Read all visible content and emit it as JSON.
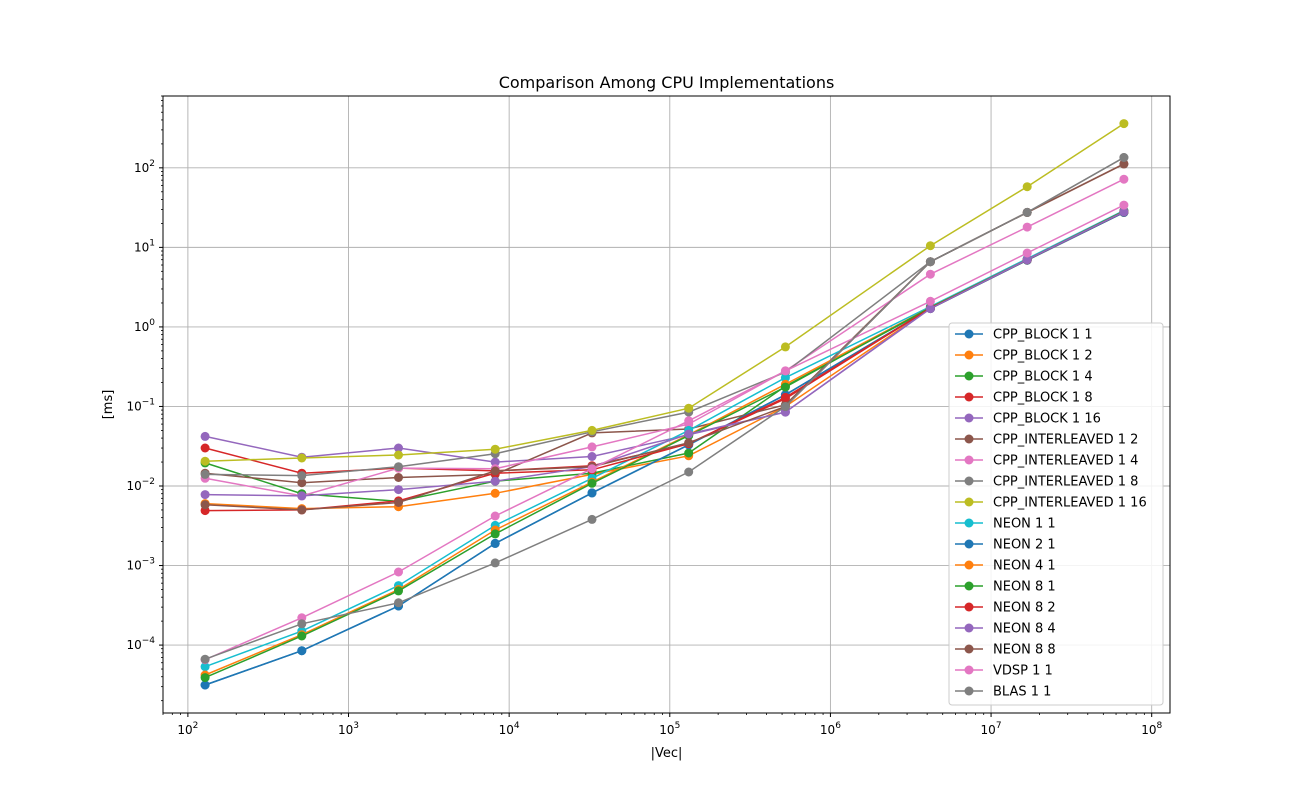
{
  "chart_data": {
    "type": "line",
    "title": "Comparison Among CPU Implementations",
    "xlabel": "|Vec|",
    "ylabel": "[ms]",
    "xscale": "log",
    "yscale": "log",
    "xlim": [
      70,
      130000000
    ],
    "ylim": [
      1.4e-05,
      800
    ],
    "grid": true,
    "legend_position": "lower-right",
    "x_ticks": [
      {
        "value": 100,
        "base": "10",
        "exp": "2"
      },
      {
        "value": 1000,
        "base": "10",
        "exp": "3"
      },
      {
        "value": 10000,
        "base": "10",
        "exp": "4"
      },
      {
        "value": 100000,
        "base": "10",
        "exp": "5"
      },
      {
        "value": 1000000,
        "base": "10",
        "exp": "6"
      },
      {
        "value": 10000000,
        "base": "10",
        "exp": "7"
      },
      {
        "value": 100000000,
        "base": "10",
        "exp": "8"
      }
    ],
    "y_ticks": [
      {
        "value": 0.0001,
        "base": "10",
        "exp": "−4"
      },
      {
        "value": 0.001,
        "base": "10",
        "exp": "−3"
      },
      {
        "value": 0.01,
        "base": "10",
        "exp": "−2"
      },
      {
        "value": 0.1,
        "base": "10",
        "exp": "−1"
      },
      {
        "value": 1,
        "base": "10",
        "exp": "0"
      },
      {
        "value": 10,
        "base": "10",
        "exp": "1"
      },
      {
        "value": 100,
        "base": "10",
        "exp": "2"
      }
    ],
    "x": [
      128,
      512,
      2048,
      8192,
      32768,
      131072,
      524288,
      4194304,
      16777216,
      67108864
    ],
    "series": [
      {
        "name": "CPP_BLOCK 1 1",
        "color": "#1f77b4",
        "values": [
          3.15e-05,
          8.5e-05,
          0.00031,
          0.0019,
          0.0082,
          0.033,
          0.14,
          1.7,
          6.9,
          27.5
        ]
      },
      {
        "name": "CPP_BLOCK 1 2",
        "color": "#ff7f0e",
        "values": [
          0.006,
          0.0052,
          0.0055,
          0.0081,
          0.014,
          0.024,
          0.1,
          1.7,
          6.9,
          27.5
        ]
      },
      {
        "name": "CPP_BLOCK 1 4",
        "color": "#2ca02c",
        "values": [
          0.0195,
          0.008,
          0.0064,
          0.0115,
          0.0145,
          0.026,
          0.18,
          1.72,
          7.0,
          27.8
        ]
      },
      {
        "name": "CPP_BLOCK 1 8",
        "color": "#d62728",
        "values": [
          0.03,
          0.0145,
          0.0168,
          0.0155,
          0.018,
          0.034,
          0.125,
          1.72,
          7.0,
          28.0
        ]
      },
      {
        "name": "CPP_BLOCK 1 16",
        "color": "#9467bd",
        "values": [
          0.042,
          0.023,
          0.03,
          0.02,
          0.0235,
          0.044,
          0.085,
          1.72,
          7.0,
          28.0
        ]
      },
      {
        "name": "CPP_INTERLEAVED 1 2",
        "color": "#8c564b",
        "values": [
          0.0145,
          0.011,
          0.0128,
          0.014,
          0.0465,
          0.052,
          0.105,
          6.6,
          27.5,
          112
        ]
      },
      {
        "name": "CPP_INTERLEAVED 1 4",
        "color": "#e377c2",
        "values": [
          0.0125,
          0.0075,
          0.0168,
          0.0165,
          0.031,
          0.06,
          0.28,
          4.6,
          18.0,
          72
        ]
      },
      {
        "name": "CPP_INTERLEAVED 1 8",
        "color": "#7f7f7f",
        "values": [
          0.014,
          0.0135,
          0.0175,
          0.0255,
          0.048,
          0.085,
          0.27,
          6.6,
          27.5,
          135
        ]
      },
      {
        "name": "CPP_INTERLEAVED 1 16",
        "color": "#bcbd22",
        "values": [
          0.0205,
          0.0225,
          0.0245,
          0.029,
          0.05,
          0.095,
          0.56,
          10.5,
          58,
          360
        ]
      },
      {
        "name": "NEON 1 1",
        "color": "#17becf",
        "values": [
          5.35e-05,
          0.00015,
          0.00056,
          0.0032,
          0.0125,
          0.05,
          0.23,
          1.8,
          7.2,
          29.0
        ]
      },
      {
        "name": "NEON 2 1",
        "color": "#1f77b4",
        "values": [
          3.15e-05,
          8.5e-05,
          0.00031,
          0.0019,
          0.0082,
          0.033,
          0.14,
          1.7,
          6.9,
          27.5
        ]
      },
      {
        "name": "NEON 4 1",
        "color": "#ff7f0e",
        "values": [
          4.2e-05,
          0.000135,
          0.0005,
          0.0028,
          0.0112,
          0.044,
          0.19,
          1.75,
          7.0,
          28.5
        ]
      },
      {
        "name": "NEON 8 1",
        "color": "#2ca02c",
        "values": [
          3.9e-05,
          0.00013,
          0.00048,
          0.0025,
          0.0108,
          0.043,
          0.175,
          1.75,
          7.0,
          28.5
        ]
      },
      {
        "name": "NEON 8 2",
        "color": "#d62728",
        "values": [
          0.0049,
          0.005,
          0.0065,
          0.0145,
          0.016,
          0.034,
          0.13,
          1.72,
          7.0,
          28.0
        ]
      },
      {
        "name": "NEON 8 4",
        "color": "#9467bd",
        "values": [
          0.0078,
          0.0075,
          0.009,
          0.0115,
          0.0175,
          0.045,
          0.085,
          1.7,
          7.0,
          28.0
        ]
      },
      {
        "name": "NEON 8 8",
        "color": "#8c564b",
        "values": [
          0.0058,
          0.005,
          0.0062,
          0.0155,
          0.0175,
          0.035,
          0.1,
          6.6,
          27.5,
          112
        ]
      },
      {
        "name": "VDSP 1 1",
        "color": "#e377c2",
        "values": [
          6.55e-05,
          0.00022,
          0.00083,
          0.0042,
          0.0165,
          0.066,
          0.28,
          2.1,
          8.5,
          34.0
        ]
      },
      {
        "name": "BLAS 1 1",
        "color": "#7f7f7f",
        "values": [
          6.65e-05,
          0.000185,
          0.00034,
          0.00108,
          0.0038,
          0.015,
          0.1,
          6.6,
          27.5,
          135
        ]
      }
    ]
  }
}
